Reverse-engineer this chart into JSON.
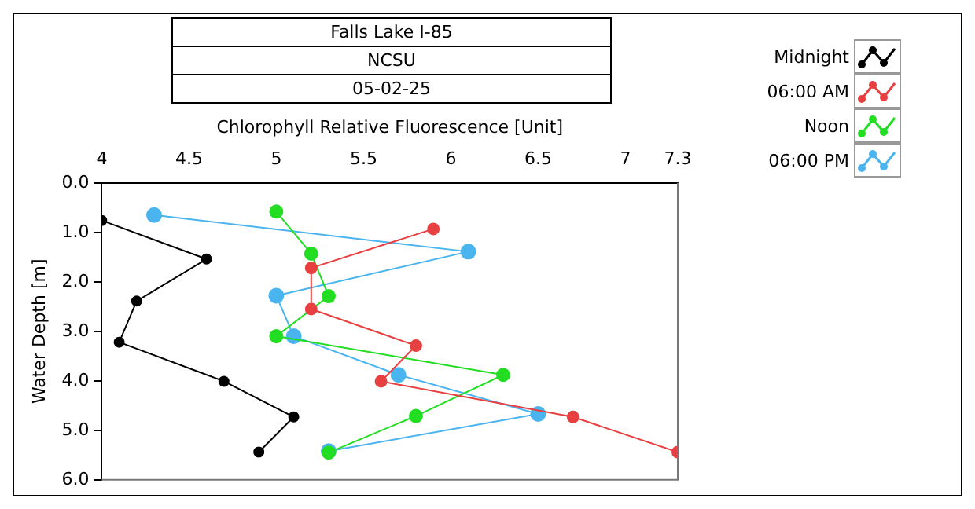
{
  "chart_data": {
    "type": "line",
    "title": "Falls Lake I-85",
    "subtitle": "NCSU",
    "annotations": [
      "05-02-25"
    ],
    "xlabel": "Chlorophyll Relative Fluorescence [Unit]",
    "ylabel": "Water Depth [m]",
    "xlim": [
      4,
      7.3
    ],
    "xticks": [
      4,
      4.5,
      5,
      5.5,
      6,
      6.5,
      7,
      7.3
    ],
    "ylim": [
      6,
      0
    ],
    "yticks": [
      {
        "value": 0,
        "label": "0.0"
      },
      {
        "value": 1,
        "label": "1.0"
      },
      {
        "value": 2,
        "label": "2.0"
      },
      {
        "value": 3,
        "label": "3.0"
      },
      {
        "value": 4,
        "label": "4.0"
      },
      {
        "value": 5,
        "label": "5.0"
      },
      {
        "value": 6,
        "label": "6.0"
      }
    ],
    "grid": false,
    "legend": "top right",
    "marker": "circle",
    "line_style": "solid",
    "series": [
      {
        "name": "Midnight",
        "color": "#000000",
        "x": [
          4.0,
          4.6,
          4.2,
          4.1,
          4.7,
          5.1,
          4.9
        ],
        "values": [
          0.76,
          1.54,
          2.39,
          3.22,
          4.01,
          4.73,
          5.44
        ]
      },
      {
        "name": "06:00 AM",
        "color": "#e84040",
        "x": [
          5.9,
          5.2,
          5.2,
          5.8,
          5.6,
          6.7,
          7.3
        ],
        "values": [
          0.93,
          1.72,
          2.55,
          3.29,
          4.01,
          4.73,
          5.44
        ]
      },
      {
        "name": "Noon",
        "color": "#22dd22",
        "x": [
          5.0,
          5.2,
          5.3,
          5.0,
          6.3,
          5.8,
          5.3
        ],
        "values": [
          0.58,
          1.43,
          2.29,
          3.1,
          3.88,
          4.71,
          5.45
        ]
      },
      {
        "name": "06:00 PM",
        "color": "#4ab4ee",
        "x": [
          4.3,
          6.1,
          5.0,
          5.1,
          5.7,
          6.5,
          5.3
        ],
        "values": [
          0.65,
          1.39,
          2.28,
          3.1,
          3.88,
          4.67,
          5.42
        ]
      }
    ]
  }
}
